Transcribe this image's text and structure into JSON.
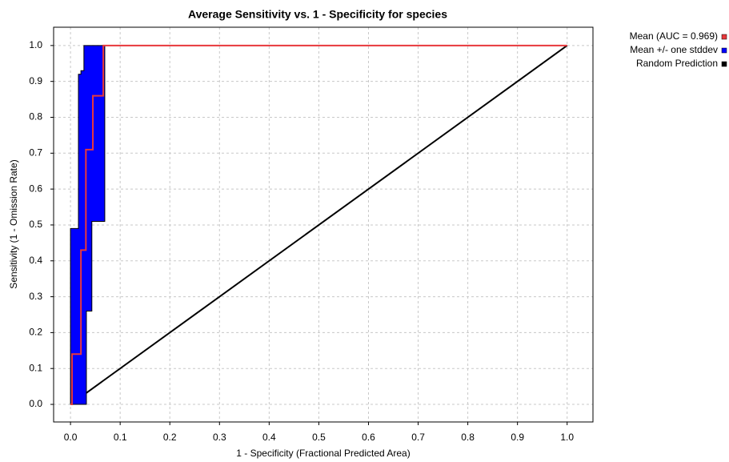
{
  "chart_data": {
    "type": "line",
    "title": "Average Sensitivity vs. 1 - Specificity for species",
    "x_label": "1 - Specificity (Fractional Predicted Area)",
    "y_label": "Sensitivity (1 - Omission Rate)",
    "xlim": [
      -0.034,
      1.052
    ],
    "ylim": [
      -0.049,
      1.051
    ],
    "xticks": [
      {
        "value": 0,
        "label": "0.0"
      },
      0.1,
      0.2,
      0.3,
      0.4,
      0.5,
      0.6,
      0.7,
      0.8,
      0.9,
      {
        "value": 1,
        "label": "1.0"
      }
    ],
    "yticks": [
      {
        "value": 0,
        "label": "0.0"
      },
      0.1,
      0.2,
      0.3,
      0.4,
      0.5,
      0.6,
      0.7,
      0.8,
      0.9,
      {
        "value": 1,
        "label": "1.0"
      }
    ],
    "grid": true,
    "legend": "right",
    "series": [
      {
        "name": "Random Prediction",
        "color": "#000000",
        "x": [
          0,
          1
        ],
        "values": [
          0,
          1
        ]
      },
      {
        "name": "Mean +/- one stddev",
        "color": "#0000ff",
        "upper": {
          "x": [
            0,
            0,
            0.016,
            0.016,
            0.021,
            0.021,
            0.027,
            0.027,
            1
          ],
          "values": [
            0,
            0.49,
            0.49,
            0.92,
            0.92,
            0.93,
            0.93,
            1,
            1
          ]
        },
        "lower": {
          "x": [
            0.032,
            0.032,
            0.043,
            0.043,
            0.069,
            0.069,
            1
          ],
          "values": [
            0,
            0.26,
            0.26,
            0.51,
            0.51,
            1,
            1
          ]
        }
      },
      {
        "name": "Mean (AUC = 0.969)",
        "color": "#e8383c",
        "x": [
          0,
          0.003,
          0.003,
          0.021,
          0.021,
          0.031,
          0.031,
          0.045,
          0.045,
          0.066,
          0.066,
          1
        ],
        "values": [
          0,
          0,
          0.14,
          0.14,
          0.43,
          0.43,
          0.71,
          0.71,
          0.86,
          0.86,
          1,
          1
        ]
      }
    ],
    "legend_order": [
      "Mean (AUC = 0.969)",
      "Mean +/- one stddev",
      "Random Prediction"
    ]
  }
}
